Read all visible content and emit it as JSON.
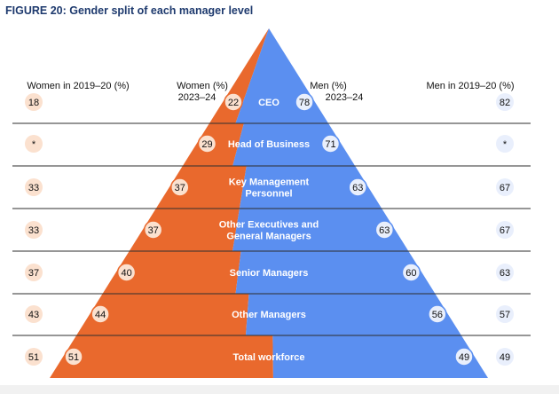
{
  "chart_data": {
    "type": "bar",
    "title": "FIGURE 20: Gender split of each manager level",
    "categories": [
      "CEO",
      "Head of Business",
      "Key Management Personnel",
      "Other Executives and General Managers",
      "Senior Managers",
      "Other Managers",
      "Total workforce"
    ],
    "category_lines": [
      [
        "CEO"
      ],
      [
        "Head of Business"
      ],
      [
        "Key Management",
        "Personnel"
      ],
      [
        "Other Executives and",
        "General Managers"
      ],
      [
        "Senior Managers"
      ],
      [
        "Other Managers"
      ],
      [
        "Total workforce"
      ]
    ],
    "column_headers": {
      "women_prev": "Women in 2019–20 (%)",
      "women_curr": [
        "Women (%)",
        "2023–24"
      ],
      "men_curr": [
        "Men (%)",
        "2023–24"
      ],
      "men_prev": "Men in 2019–20 (%)"
    },
    "series": [
      {
        "name": "Women (%) 2023–24",
        "values": [
          22,
          29,
          37,
          37,
          40,
          44,
          51
        ]
      },
      {
        "name": "Men (%) 2023–24",
        "values": [
          78,
          71,
          63,
          63,
          60,
          56,
          49
        ]
      },
      {
        "name": "Women in 2019–20 (%)",
        "values": [
          "18",
          "*",
          "33",
          "33",
          "37",
          "43",
          "51"
        ]
      },
      {
        "name": "Men in 2019–20 (%)",
        "values": [
          "82",
          "*",
          "67",
          "67",
          "63",
          "57",
          "49"
        ]
      }
    ],
    "ylim": [
      0,
      100
    ],
    "colors": {
      "women": "#e9692d",
      "men": "#5b8ff0",
      "women_badge": "#fbe1cf",
      "men_badge": "#e9effc",
      "title": "#1e3a6e",
      "divider": "#2e2e2e"
    }
  }
}
